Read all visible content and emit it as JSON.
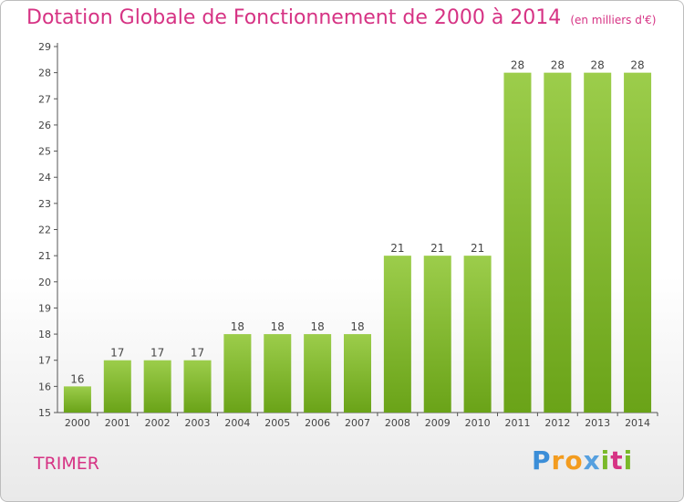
{
  "header": {
    "title": "Dotation Globale de Fonctionnement de 2000 à 2014",
    "subtitle": "(en milliers d'€)"
  },
  "footer": {
    "commune": "TRIMER",
    "logo_letters": [
      "P",
      "r",
      "o",
      "x",
      "i",
      "t",
      "i"
    ]
  },
  "colors": {
    "accent": "#d63384",
    "bar_light": "#9ccd4b",
    "bar_dark": "#6aa318"
  },
  "chart_data": {
    "type": "bar",
    "title": "Dotation Globale de Fonctionnement de 2000 à 2014",
    "subtitle": "(en milliers d'€)",
    "categories": [
      "2000",
      "2001",
      "2002",
      "2003",
      "2004",
      "2005",
      "2006",
      "2007",
      "2008",
      "2009",
      "2010",
      "2011",
      "2012",
      "2013",
      "2014"
    ],
    "values": [
      16,
      17,
      17,
      17,
      18,
      18,
      18,
      18,
      21,
      21,
      21,
      28,
      28,
      28,
      28
    ],
    "ylim": [
      15,
      29
    ],
    "yticks": [
      15,
      16,
      17,
      18,
      19,
      20,
      21,
      22,
      23,
      24,
      25,
      26,
      27,
      28,
      29
    ],
    "xlabel": "",
    "ylabel": "",
    "grid": false,
    "legend": "none"
  }
}
